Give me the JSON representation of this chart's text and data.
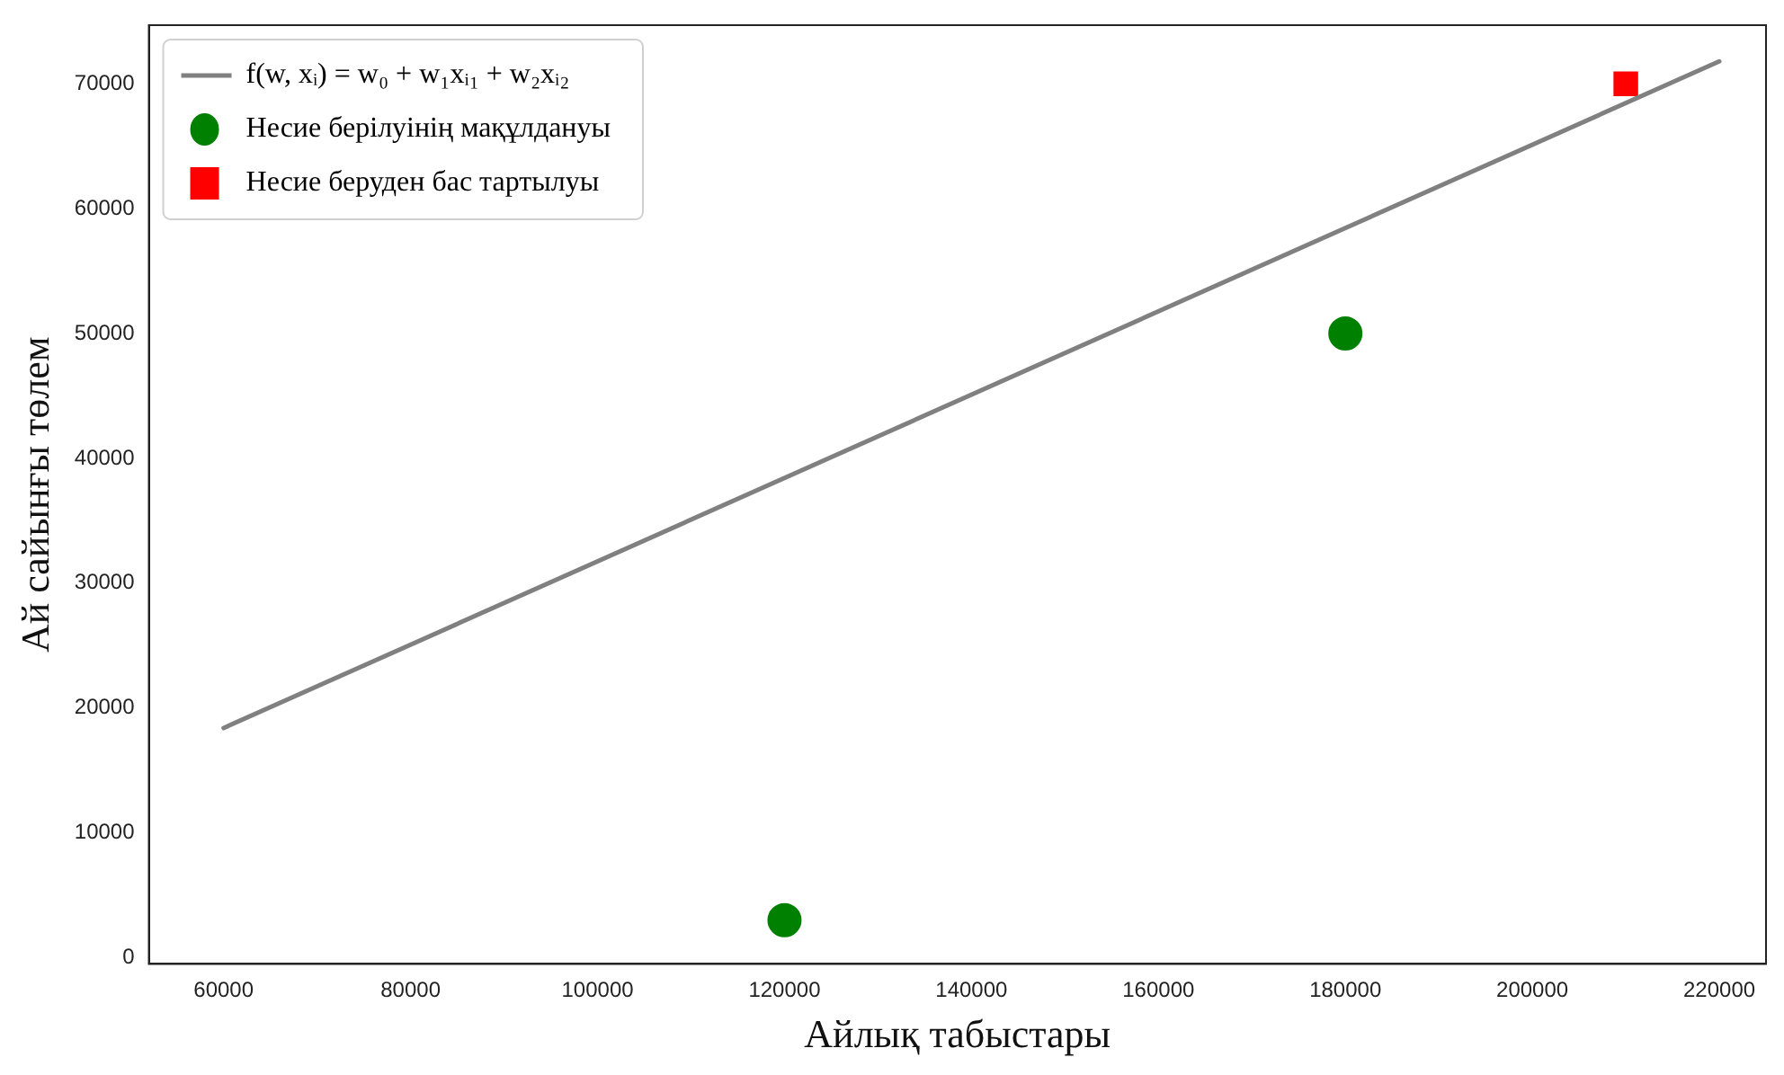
{
  "chart_data": {
    "type": "scatter",
    "xlabel": "Айлық табыстары",
    "ylabel": "Ай сайынғы төлем",
    "xlim": [
      52000,
      225000
    ],
    "xticks": [
      60000,
      80000,
      100000,
      120000,
      140000,
      160000,
      180000,
      200000,
      220000
    ],
    "ylim": [
      -500,
      74700
    ],
    "yticks": [
      0,
      10000,
      20000,
      30000,
      40000,
      50000,
      60000,
      70000
    ],
    "grid": false,
    "legend": "top left",
    "series": [
      {
        "name": "f(w, xᵢ) = w₀ + w₁xᵢ₁ + w₂xᵢ₂",
        "type": "line",
        "color": "#808080",
        "x": [
          60000,
          220000
        ],
        "values": [
          18400,
          71800
        ],
        "marker": "none"
      },
      {
        "name": "Несие берілуінің мақұлдануы",
        "type": "scatter",
        "color": "#008000",
        "x": [
          120000,
          180000
        ],
        "values": [
          3000,
          50000
        ],
        "marker": "circle"
      },
      {
        "name": "Несие беруден бас тартылуы",
        "type": "scatter",
        "color": "#ff0000",
        "x": [
          210000
        ],
        "values": [
          70000
        ],
        "marker": "square"
      }
    ]
  }
}
